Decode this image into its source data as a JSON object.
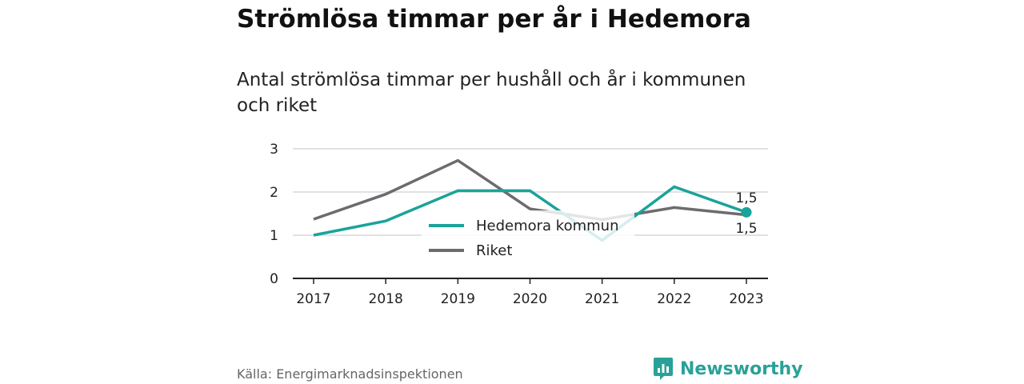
{
  "title": "Strömlösa timmar per år i Hedemora",
  "subtitle": "Antal strömlösa timmar per hushåll och år i kommunen och riket",
  "source": "Källa: Energimarknadsinspektionen",
  "brand": "Newsworthy",
  "colors": {
    "hedemora": "#1aa39a",
    "riket": "#6b6b70",
    "grid": "#d9d9d9",
    "axis": "#222222",
    "brand": "#2aa198"
  },
  "chart_data": {
    "type": "line",
    "title": "Strömlösa timmar per år i Hedemora",
    "subtitle": "Antal strömlösa timmar per hushåll och år i kommunen och riket",
    "xlabel": "",
    "ylabel": "",
    "x": [
      "2017",
      "2018",
      "2019",
      "2020",
      "2021",
      "2022",
      "2023"
    ],
    "yticks": [
      "0",
      "1",
      "2",
      "3"
    ],
    "ylim": [
      0,
      3
    ],
    "grid": true,
    "legend_position": "inside-center",
    "series": [
      {
        "name": "Hedemora kommun",
        "values": [
          1.0,
          1.33,
          2.03,
          2.03,
          0.88,
          2.12,
          1.53
        ],
        "end_label": "1,5"
      },
      {
        "name": "Riket",
        "values": [
          1.37,
          1.95,
          2.73,
          1.61,
          1.36,
          1.64,
          1.47
        ],
        "end_label": "1,5"
      }
    ]
  }
}
